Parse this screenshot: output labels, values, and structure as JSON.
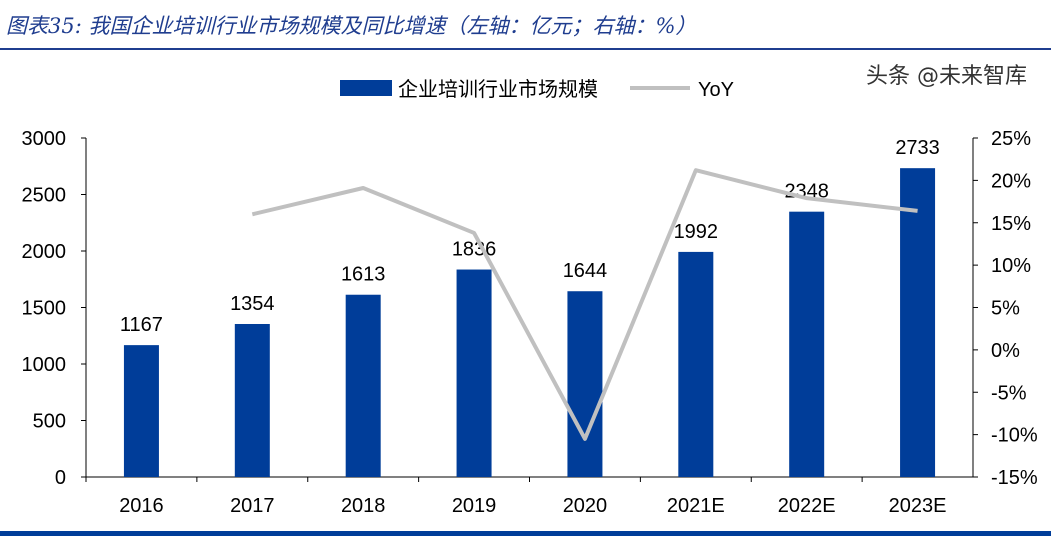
{
  "title": "图表35: 我国企业培训行业市场规模及同比增速（左轴：亿元；右轴：%）",
  "watermark": "头条 @未来智库",
  "chart_data": {
    "type": "bar+line",
    "categories": [
      "2016",
      "2017",
      "2018",
      "2019",
      "2020",
      "2021E",
      "2022E",
      "2023E"
    ],
    "series": [
      {
        "name": "企业培训行业市场规模",
        "type": "bar",
        "axis": "left",
        "color": "#003d99",
        "values": [
          1167,
          1354,
          1613,
          1836,
          1644,
          1992,
          2348,
          2733
        ],
        "labels": [
          "1167",
          "1354",
          "1613",
          "1836",
          "1644",
          "1992",
          "2348",
          "2733"
        ]
      },
      {
        "name": "YoY",
        "type": "line",
        "axis": "right",
        "color": "#c0c0c0",
        "values": [
          null,
          16.0,
          19.1,
          13.8,
          -10.5,
          21.2,
          17.9,
          16.4
        ]
      }
    ],
    "left_axis": {
      "range": [
        0,
        3000
      ],
      "ticks": [
        "0",
        "500",
        "1000",
        "1500",
        "2000",
        "2500",
        "3000"
      ]
    },
    "right_axis": {
      "range": [
        -15,
        25
      ],
      "ticks": [
        "-15%",
        "-10%",
        "-5%",
        "0%",
        "5%",
        "10%",
        "15%",
        "20%",
        "25%"
      ]
    },
    "legend": "top-center",
    "grid": false
  }
}
